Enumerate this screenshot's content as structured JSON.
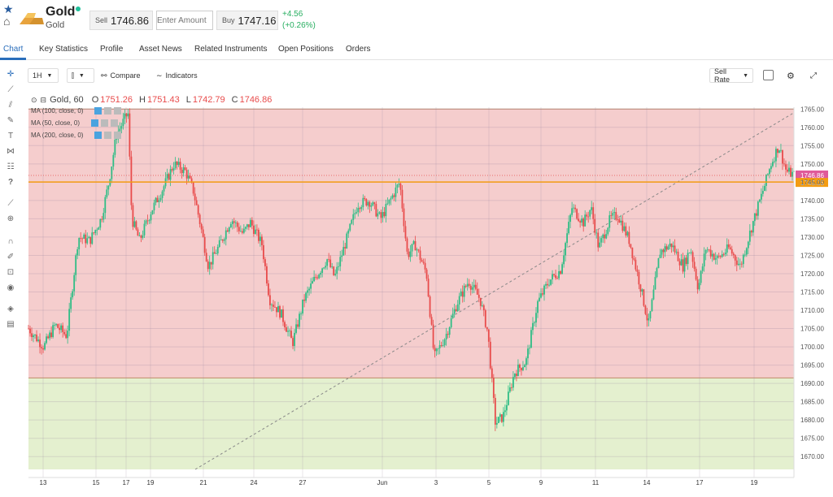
{
  "header": {
    "instrument_name": "Gold",
    "instrument_sub": "Gold",
    "sell_label": "Sell",
    "sell_price": "1746.86",
    "amount_placeholder": "Enter Amount",
    "buy_label": "Buy",
    "buy_price": "1747.16",
    "change": "+4.56",
    "change_pct": "(+0.26%)"
  },
  "tabs": [
    "Chart",
    "Key Statistics",
    "Profile",
    "Asset News",
    "Related Instruments",
    "Open Positions",
    "Orders"
  ],
  "toolbar": {
    "interval": "1H",
    "compare": "Compare",
    "indicators": "Indicators",
    "rate": "Sell Rate"
  },
  "ohlc": {
    "symbol": "Gold, 60",
    "o_label": "O",
    "o": "1751.26",
    "h_label": "H",
    "h": "1751.43",
    "l_label": "L",
    "l": "1742.79",
    "c_label": "C",
    "c": "1746.86"
  },
  "indicators": [
    "MA (100, close, 0)",
    "MA (50, close, 0)",
    "MA (200, close, 0)"
  ],
  "chart_data": {
    "type": "candlestick",
    "y_ticks": [
      1765,
      1760,
      1755,
      1750,
      1745,
      1740,
      1735,
      1730,
      1725,
      1720,
      1715,
      1710,
      1705,
      1700,
      1695,
      1690,
      1685,
      1680,
      1675,
      1670
    ],
    "ylim": [
      1666.5,
      1765.5
    ],
    "x_ticks": [
      "13",
      "15",
      "17",
      "19",
      "21",
      "24",
      "27",
      "Jun",
      "3",
      "5",
      "9",
      "11",
      "14",
      "17",
      "19"
    ],
    "price_label": "1746.86",
    "level_label": "1745.05",
    "level_value": 1745.05,
    "last_value": 1746.86,
    "zones": [
      {
        "from": 1691.5,
        "to": 1765,
        "color": "#f5cdcd"
      },
      {
        "from": 1666.5,
        "to": 1691.5,
        "color": "#e4f0cf"
      }
    ],
    "trendline": [
      [
        1666.5,
        0
      ],
      [
        1764,
        1
      ]
    ],
    "colors": {
      "up": "#2ebd85",
      "down": "#e84b4b"
    },
    "close_path": [
      [
        0,
        1705
      ],
      [
        0.02,
        1700
      ],
      [
        0.035,
        1706
      ],
      [
        0.05,
        1703
      ],
      [
        0.065,
        1730
      ],
      [
        0.08,
        1729
      ],
      [
        0.095,
        1735
      ],
      [
        0.105,
        1745
      ],
      [
        0.115,
        1758
      ],
      [
        0.125,
        1762
      ],
      [
        0.13,
        1764
      ],
      [
        0.135,
        1735
      ],
      [
        0.145,
        1729
      ],
      [
        0.16,
        1737
      ],
      [
        0.175,
        1743
      ],
      [
        0.19,
        1750
      ],
      [
        0.205,
        1748
      ],
      [
        0.215,
        1743
      ],
      [
        0.225,
        1733
      ],
      [
        0.235,
        1722
      ],
      [
        0.25,
        1728
      ],
      [
        0.265,
        1735
      ],
      [
        0.28,
        1731
      ],
      [
        0.29,
        1734
      ],
      [
        0.305,
        1728
      ],
      [
        0.315,
        1713
      ],
      [
        0.33,
        1709
      ],
      [
        0.345,
        1701
      ],
      [
        0.36,
        1713
      ],
      [
        0.375,
        1719
      ],
      [
        0.39,
        1724
      ],
      [
        0.4,
        1719
      ],
      [
        0.415,
        1729
      ],
      [
        0.43,
        1739
      ],
      [
        0.445,
        1740
      ],
      [
        0.46,
        1735
      ],
      [
        0.475,
        1741
      ],
      [
        0.485,
        1745
      ],
      [
        0.495,
        1725
      ],
      [
        0.505,
        1728
      ],
      [
        0.52,
        1720
      ],
      [
        0.53,
        1697
      ],
      [
        0.545,
        1703
      ],
      [
        0.56,
        1712
      ],
      [
        0.575,
        1718
      ],
      [
        0.59,
        1713
      ],
      [
        0.6,
        1704
      ],
      [
        0.61,
        1679
      ],
      [
        0.62,
        1681
      ],
      [
        0.635,
        1693
      ],
      [
        0.65,
        1696
      ],
      [
        0.665,
        1712
      ],
      [
        0.68,
        1718
      ],
      [
        0.695,
        1721
      ],
      [
        0.71,
        1738
      ],
      [
        0.725,
        1734
      ],
      [
        0.735,
        1738
      ],
      [
        0.745,
        1727
      ],
      [
        0.76,
        1735
      ],
      [
        0.77,
        1736
      ],
      [
        0.785,
        1729
      ],
      [
        0.8,
        1716
      ],
      [
        0.81,
        1706
      ],
      [
        0.825,
        1726
      ],
      [
        0.84,
        1728
      ],
      [
        0.855,
        1722
      ],
      [
        0.865,
        1727
      ],
      [
        0.875,
        1716
      ],
      [
        0.885,
        1727
      ],
      [
        0.9,
        1724
      ],
      [
        0.915,
        1727
      ],
      [
        0.93,
        1722
      ],
      [
        0.945,
        1733
      ],
      [
        0.96,
        1743
      ],
      [
        0.97,
        1750
      ],
      [
        0.98,
        1755
      ],
      [
        0.99,
        1748
      ],
      [
        1.0,
        1747
      ]
    ]
  }
}
